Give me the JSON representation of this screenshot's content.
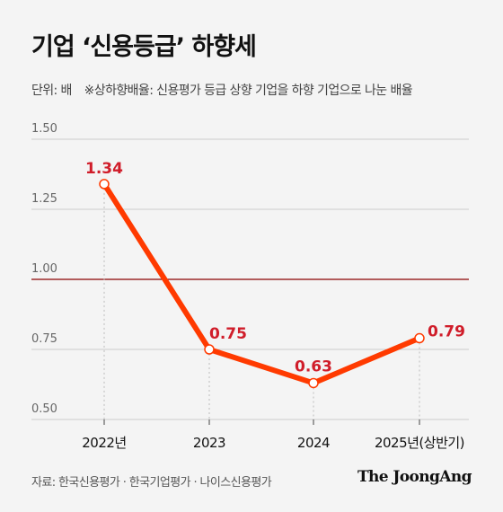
{
  "title": "기업 ‘신용등급’ 하향세",
  "unit_note": "단위: 배",
  "definition_note": "※상하향배율: 신용평가 등급 상향 기업을 하향 기업으로 나눈 배율",
  "source": "자료: 한국신용평가 · 한국기업평가 · 나이스신용평가",
  "logo": "The JoongAng",
  "colors": {
    "line": "#ff3a00",
    "label": "#d01d2a",
    "reference": "#8b0000",
    "grid": "#cccccc",
    "tick": "#666666"
  },
  "chart_data": {
    "type": "line",
    "categories": [
      "2022년",
      "2023",
      "2024",
      "2025년(상반기)"
    ],
    "values": [
      1.34,
      0.75,
      0.63,
      0.79
    ],
    "value_labels": [
      "1.34",
      "0.75",
      "0.63",
      "0.79"
    ],
    "ylim": [
      0.5,
      1.5
    ],
    "yticks": [
      1.5,
      1.25,
      1.0,
      0.75,
      0.5
    ],
    "ytick_labels": [
      "1.50",
      "1.25",
      "1.00",
      "0.75",
      "0.50"
    ],
    "reference_line": 1.0,
    "grid": true
  }
}
